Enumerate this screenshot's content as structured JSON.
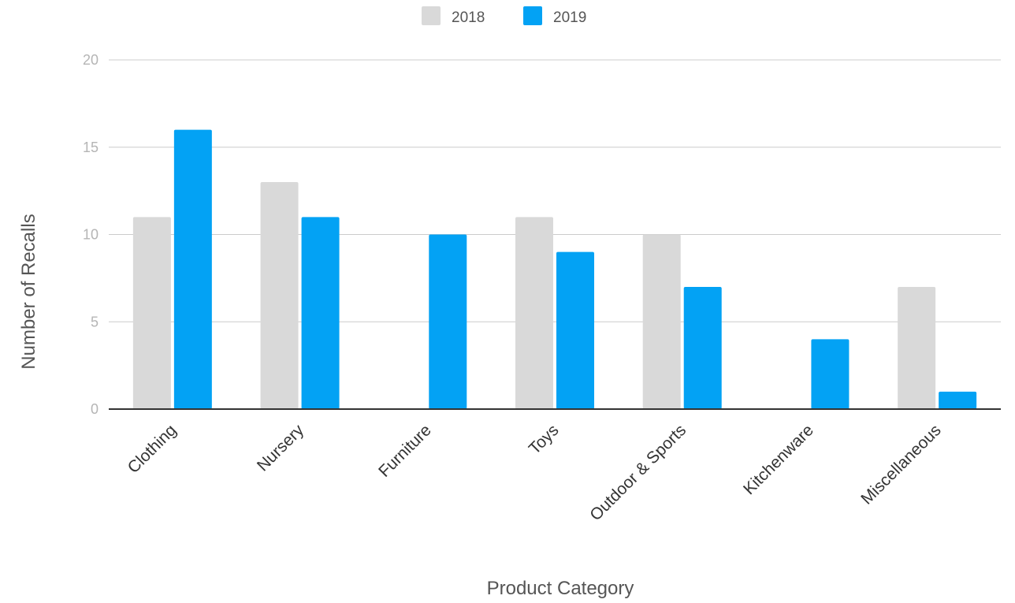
{
  "chart_data": {
    "type": "bar",
    "title": "",
    "xlabel": "Product Category",
    "ylabel": "Number of Recalls",
    "ylim": [
      0,
      20
    ],
    "yticks": [
      0,
      5,
      10,
      15,
      20
    ],
    "grid": true,
    "legend_position": "top-center",
    "categories": [
      "Clothing",
      "Nursery",
      "Furniture",
      "Toys",
      "Outdoor & Sports",
      "Kitchenware",
      "Miscellaneous"
    ],
    "series": [
      {
        "name": "2018",
        "color": "#d9d9d9",
        "values": [
          11,
          13,
          0,
          11,
          10,
          0,
          7
        ]
      },
      {
        "name": "2019",
        "color": "#03a2f4",
        "values": [
          16,
          11,
          10,
          9,
          7,
          4,
          1
        ]
      }
    ]
  }
}
